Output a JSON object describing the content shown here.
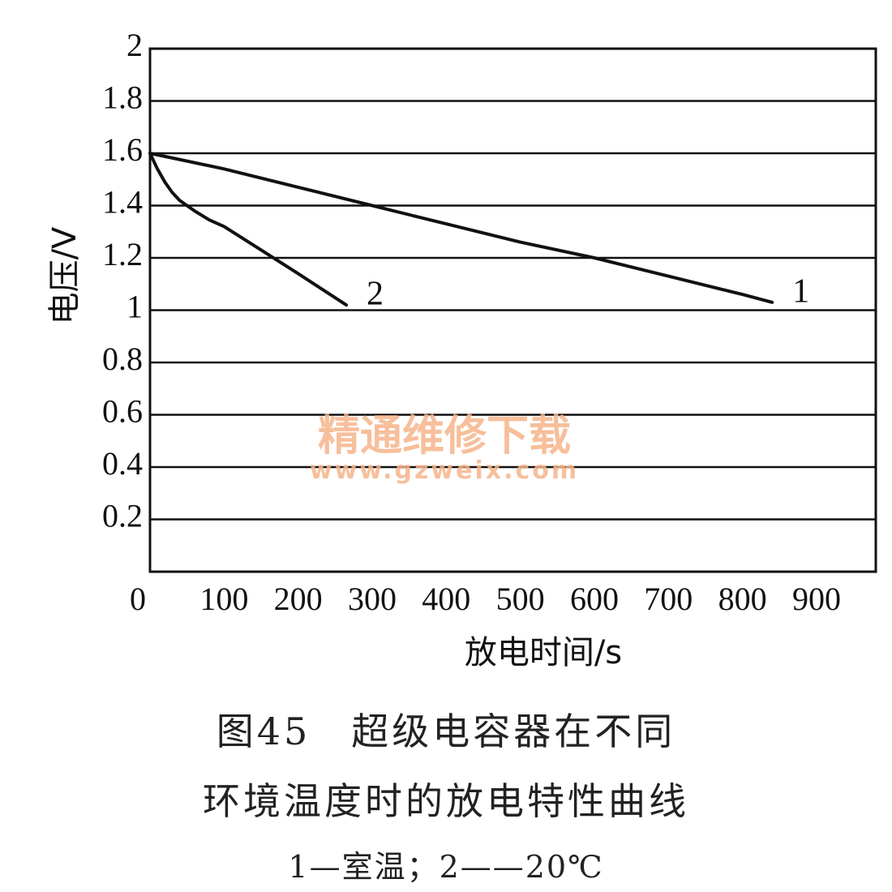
{
  "chart_data": {
    "type": "line",
    "xlabel": "放电时间/s",
    "ylabel": "电压/V",
    "xlim": [
      0,
      980
    ],
    "ylim": [
      0,
      2
    ],
    "x_ticks": [
      "0",
      "100",
      "200",
      "300",
      "400",
      "500",
      "600",
      "700",
      "800",
      "900"
    ],
    "y_ticks": [
      "0.2",
      "0.4",
      "0.6",
      "0.8",
      "1",
      "1.2",
      "1.4",
      "1.6",
      "1.8",
      "2"
    ],
    "grid": "horizontal",
    "series": [
      {
        "name": "1",
        "x": [
          0,
          100,
          200,
          300,
          400,
          500,
          600,
          700,
          800,
          840
        ],
        "y": [
          1.6,
          1.54,
          1.47,
          1.4,
          1.33,
          1.26,
          1.2,
          1.13,
          1.06,
          1.03
        ]
      },
      {
        "name": "2",
        "x": [
          0,
          10,
          20,
          30,
          40,
          60,
          80,
          100,
          150,
          200,
          265
        ],
        "y": [
          1.6,
          1.54,
          1.49,
          1.45,
          1.42,
          1.38,
          1.345,
          1.32,
          1.23,
          1.14,
          1.02
        ]
      }
    ]
  },
  "watermark": {
    "text": "精通维修下载",
    "url": "www.gzweix.com"
  },
  "caption": {
    "line1": "图45　超级电容器在不同",
    "line2": "环境温度时的放电特性曲线",
    "line3": "1—室温；2——20℃"
  }
}
